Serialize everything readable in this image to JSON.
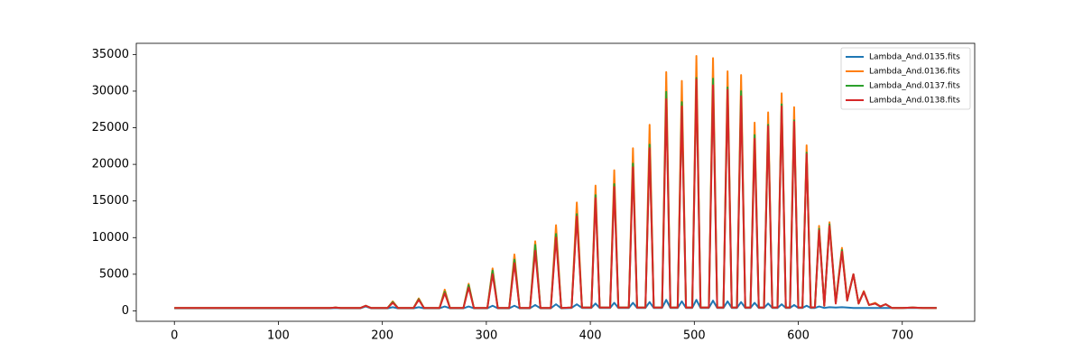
{
  "chart_data": {
    "type": "line",
    "x": [
      0,
      50,
      100,
      150,
      155,
      160,
      179,
      184,
      189,
      205,
      210,
      215,
      230,
      235,
      240,
      255,
      260,
      265,
      278,
      283,
      288,
      301,
      306,
      311,
      322,
      327,
      332,
      342,
      347,
      352,
      362,
      367,
      372,
      382,
      387,
      392,
      401,
      405,
      409,
      419,
      423,
      427,
      437,
      441,
      445,
      453,
      457,
      461,
      469,
      473,
      477,
      484,
      488,
      492,
      498,
      502,
      506,
      514,
      518,
      522,
      528,
      532,
      536,
      541,
      545,
      549,
      554,
      558,
      562,
      567,
      571,
      575,
      580,
      584,
      588,
      592,
      596,
      600,
      604,
      608,
      612,
      616,
      620,
      625,
      630,
      636,
      642,
      647,
      653,
      658,
      663,
      668,
      674,
      679,
      684,
      690,
      700,
      710,
      720,
      733
    ],
    "series": [
      {
        "name": "Lambda_And.0135.fits",
        "color": "#1f77b4",
        "values": [
          350,
          350,
          350,
          350,
          400,
          350,
          350,
          600,
          350,
          350,
          500,
          350,
          350,
          500,
          350,
          350,
          600,
          350,
          350,
          600,
          350,
          350,
          700,
          350,
          350,
          700,
          350,
          350,
          800,
          350,
          350,
          900,
          350,
          400,
          900,
          400,
          400,
          1000,
          400,
          400,
          1100,
          400,
          400,
          1100,
          400,
          400,
          1200,
          400,
          400,
          1500,
          400,
          400,
          1300,
          400,
          400,
          1500,
          400,
          400,
          1400,
          400,
          400,
          1300,
          400,
          400,
          1200,
          400,
          400,
          1100,
          400,
          400,
          1000,
          400,
          400,
          900,
          400,
          400,
          800,
          400,
          400,
          700,
          400,
          400,
          600,
          400,
          500,
          450,
          500,
          450,
          400,
          400,
          400,
          400,
          400,
          400,
          400,
          400,
          400,
          400,
          400,
          400
        ]
      },
      {
        "name": "Lambda_And.0136.fits",
        "color": "#ff7f0e",
        "values": [
          400,
          400,
          400,
          400,
          450,
          400,
          400,
          700,
          400,
          400,
          1300,
          400,
          400,
          1700,
          400,
          400,
          2900,
          400,
          400,
          3700,
          400,
          400,
          5800,
          400,
          400,
          7700,
          400,
          400,
          9500,
          400,
          400,
          11700,
          400,
          450,
          14800,
          450,
          450,
          17100,
          450,
          450,
          19200,
          450,
          450,
          22200,
          450,
          450,
          25400,
          450,
          450,
          32600,
          450,
          450,
          31400,
          450,
          450,
          34800,
          450,
          450,
          34500,
          450,
          450,
          32700,
          450,
          450,
          32200,
          450,
          450,
          25700,
          450,
          450,
          27100,
          450,
          450,
          29700,
          450,
          450,
          27800,
          450,
          450,
          22600,
          450,
          500,
          11600,
          700,
          12100,
          1200,
          8600,
          1500,
          5000,
          1000,
          2700,
          800,
          1100,
          600,
          900,
          400,
          400,
          450,
          400,
          400
        ]
      },
      {
        "name": "Lambda_And.0137.fits",
        "color": "#2ca02c",
        "values": [
          400,
          400,
          400,
          400,
          450,
          400,
          400,
          700,
          400,
          400,
          1200,
          400,
          400,
          1600,
          400,
          400,
          2600,
          400,
          400,
          3500,
          400,
          400,
          5500,
          400,
          400,
          7000,
          400,
          400,
          9000,
          400,
          400,
          10500,
          400,
          450,
          13200,
          450,
          450,
          15800,
          450,
          450,
          17300,
          450,
          450,
          20100,
          450,
          450,
          22700,
          450,
          450,
          29900,
          450,
          450,
          28500,
          450,
          450,
          31800,
          450,
          450,
          31700,
          450,
          450,
          30500,
          450,
          450,
          30000,
          450,
          450,
          24000,
          450,
          450,
          25400,
          450,
          450,
          28200,
          450,
          450,
          26000,
          450,
          450,
          21600,
          450,
          500,
          11200,
          700,
          11800,
          1100,
          8300,
          1400,
          5000,
          1000,
          2600,
          800,
          1000,
          600,
          900,
          400,
          400,
          450,
          400,
          400
        ]
      },
      {
        "name": "Lambda_And.0138.fits",
        "color": "#d62728",
        "values": [
          400,
          400,
          400,
          400,
          450,
          400,
          400,
          700,
          400,
          400,
          1100,
          400,
          400,
          1500,
          400,
          400,
          2400,
          400,
          400,
          3200,
          400,
          400,
          5000,
          400,
          400,
          6500,
          400,
          400,
          8200,
          400,
          400,
          10000,
          400,
          450,
          12900,
          450,
          450,
          15400,
          450,
          450,
          16900,
          450,
          450,
          19600,
          450,
          450,
          22200,
          450,
          450,
          28900,
          450,
          450,
          27900,
          450,
          450,
          31600,
          450,
          450,
          30800,
          450,
          450,
          30200,
          450,
          450,
          29300,
          450,
          450,
          23500,
          450,
          450,
          25200,
          450,
          450,
          27900,
          450,
          450,
          25800,
          450,
          450,
          21400,
          450,
          500,
          11000,
          700,
          11600,
          1000,
          8100,
          1400,
          5000,
          1000,
          2600,
          800,
          1000,
          600,
          900,
          400,
          400,
          450,
          400,
          400
        ]
      }
    ],
    "xlim": [
      -36.65,
      769.65
    ],
    "xticks": [
      0,
      100,
      200,
      300,
      400,
      500,
      600,
      700
    ],
    "ylim": [
      -1425,
      36525
    ],
    "yticks": [
      0,
      5000,
      10000,
      15000,
      20000,
      25000,
      30000,
      35000
    ],
    "legend": "upper right",
    "grid": false
  }
}
